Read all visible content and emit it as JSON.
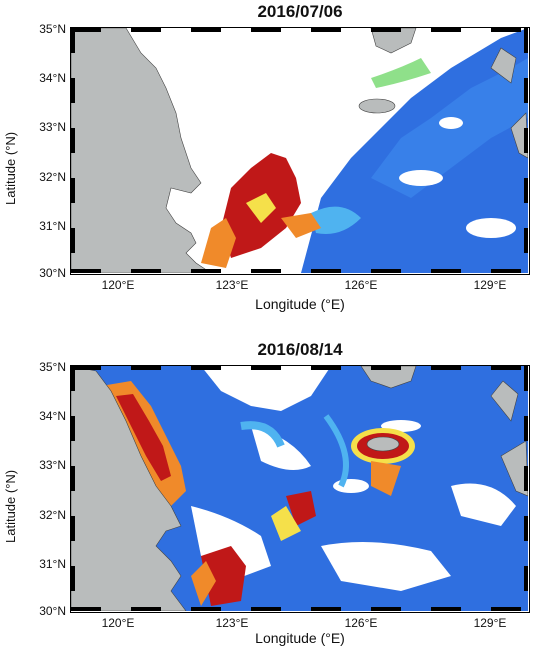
{
  "panels": [
    {
      "title": "2016/07/06",
      "ylabel": "Latitude (°N)",
      "xlabel": "Longitude (°E)",
      "yticks": [
        "35°N",
        "34°N",
        "33°N",
        "32°N",
        "31°N",
        "30°N"
      ],
      "xticks": [
        "120°E",
        "123°E",
        "126°E",
        "129°E"
      ]
    },
    {
      "title": "2016/08/14",
      "ylabel": "Latitude (°N)",
      "xlabel": "Longitude (°E)",
      "yticks": [
        "35°N",
        "34°N",
        "33°N",
        "32°N",
        "31°N",
        "30°N"
      ],
      "xticks": [
        "120°E",
        "123°E",
        "126°E",
        "129°E"
      ]
    }
  ],
  "colors": {
    "land": "#b9bcbc",
    "ocean_low": "#2f6fe0",
    "ocean_mid": "#4fb3f0",
    "green": "#8fe08a",
    "yellow": "#f5e04a",
    "orange": "#f08a2a",
    "red": "#c01818",
    "cloud": "#ffffff"
  }
}
